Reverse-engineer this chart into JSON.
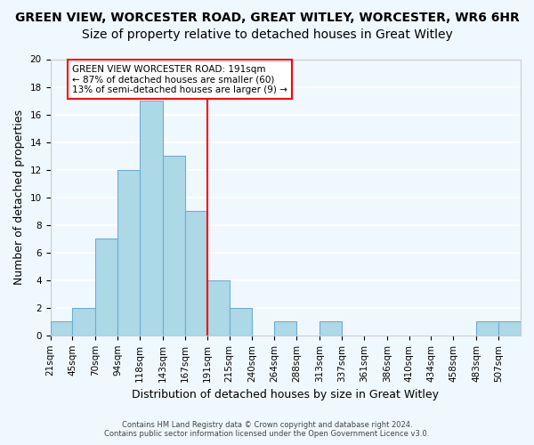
{
  "title": "GREEN VIEW, WORCESTER ROAD, GREAT WITLEY, WORCESTER, WR6 6HR",
  "subtitle": "Size of property relative to detached houses in Great Witley",
  "xlabel": "Distribution of detached houses by size in Great Witley",
  "ylabel": "Number of detached properties",
  "bar_labels": [
    "21sqm",
    "45sqm",
    "70sqm",
    "94sqm",
    "118sqm",
    "143sqm",
    "167sqm",
    "191sqm",
    "215sqm",
    "240sqm",
    "264sqm",
    "288sqm",
    "313sqm",
    "337sqm",
    "361sqm",
    "386sqm",
    "410sqm",
    "434sqm",
    "458sqm",
    "483sqm",
    "507sqm"
  ],
  "bin_edges": [
    21,
    45,
    70,
    94,
    118,
    143,
    167,
    191,
    215,
    240,
    264,
    288,
    313,
    337,
    361,
    386,
    410,
    434,
    458,
    483,
    507,
    531
  ],
  "counts": [
    1,
    2,
    7,
    12,
    17,
    13,
    9,
    4,
    2,
    0,
    1,
    0,
    1,
    0,
    0,
    0,
    0,
    0,
    0,
    1,
    1
  ],
  "bar_color": "#add8e6",
  "bar_edge_color": "#6baed6",
  "vline_x": 191,
  "vline_color": "red",
  "ylim": [
    0,
    20
  ],
  "yticks": [
    0,
    2,
    4,
    6,
    8,
    10,
    12,
    14,
    16,
    18,
    20
  ],
  "annotation_line1": "GREEN VIEW WORCESTER ROAD: 191sqm",
  "annotation_line2": "← 87% of detached houses are smaller (60)",
  "annotation_line3": "13% of semi-detached houses are larger (9) →",
  "footer_line1": "Contains HM Land Registry data © Crown copyright and database right 2024.",
  "footer_line2": "Contains public sector information licensed under the Open Government Licence v3.0.",
  "background_color": "#f0f8ff",
  "grid_color": "white",
  "title_fontsize": 10,
  "subtitle_fontsize": 10,
  "axis_label_fontsize": 9,
  "tick_fontsize": 7.5
}
